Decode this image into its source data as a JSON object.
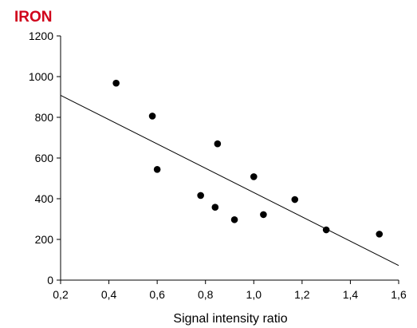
{
  "chart_data": {
    "type": "scatter",
    "title": "IRON",
    "xlabel": "Signal intensity ratio",
    "ylabel": "",
    "xlim": [
      0.2,
      1.6
    ],
    "ylim": [
      0,
      1200
    ],
    "xticks": [
      0.2,
      0.4,
      0.6,
      0.8,
      1.0,
      1.2,
      1.4,
      1.6
    ],
    "xtick_labels": [
      "0,2",
      "0,4",
      "0,6",
      "0,8",
      "1,0",
      "1,2",
      "1,4",
      "1,6"
    ],
    "yticks": [
      0,
      200,
      400,
      600,
      800,
      1000,
      1200
    ],
    "ytick_labels": [
      "0",
      "200",
      "400",
      "600",
      "800",
      "1000",
      "1200"
    ],
    "grid": false,
    "legend": "none",
    "points": [
      {
        "x": 0.43,
        "y": 968
      },
      {
        "x": 0.58,
        "y": 806
      },
      {
        "x": 0.6,
        "y": 544
      },
      {
        "x": 0.78,
        "y": 416
      },
      {
        "x": 0.84,
        "y": 358
      },
      {
        "x": 0.85,
        "y": 670
      },
      {
        "x": 0.92,
        "y": 297
      },
      {
        "x": 1.0,
        "y": 508
      },
      {
        "x": 1.04,
        "y": 322
      },
      {
        "x": 1.17,
        "y": 396
      },
      {
        "x": 1.3,
        "y": 247
      },
      {
        "x": 1.52,
        "y": 226
      }
    ],
    "trendline": {
      "x": [
        0.2,
        1.6
      ],
      "y": [
        908,
        72
      ]
    },
    "colors": {
      "title": "#d0021b",
      "points": "#000000",
      "line": "#000000",
      "axis": "#000000"
    }
  }
}
